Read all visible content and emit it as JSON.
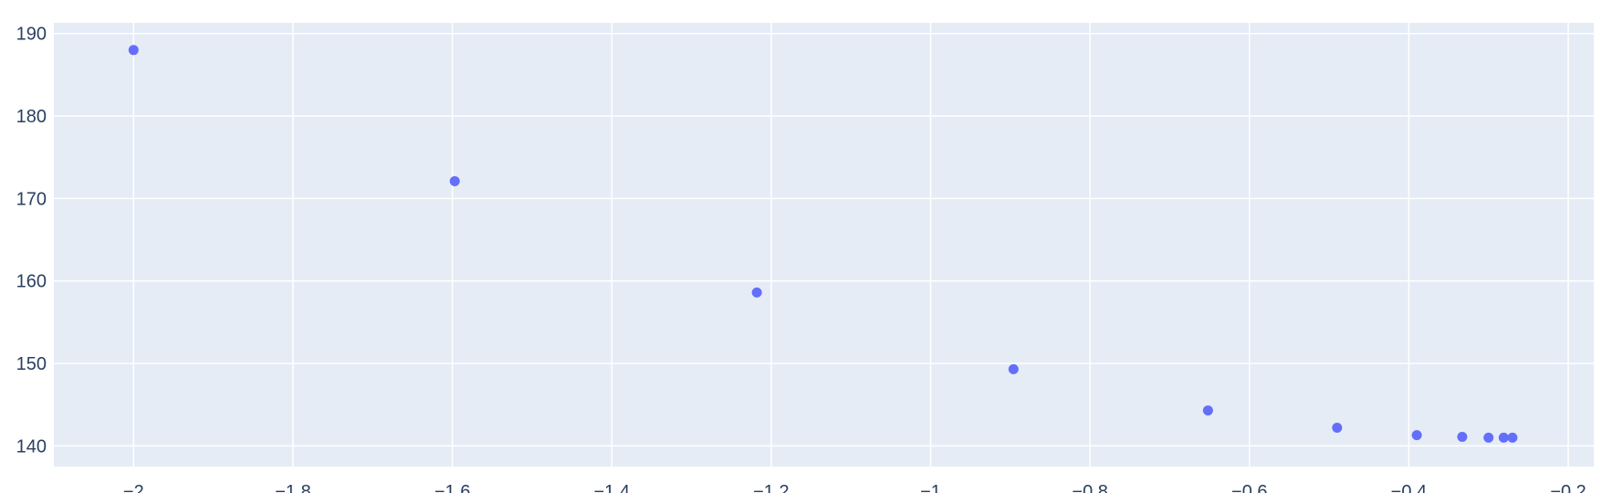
{
  "chart_data": {
    "type": "scatter",
    "title": "",
    "xlabel": "",
    "ylabel": "",
    "xlim": [
      -2.1,
      -0.168
    ],
    "ylim": [
      137.5,
      191.3
    ],
    "xticks": [
      -2,
      -1.8,
      -1.6,
      -1.4,
      -1.2,
      -1,
      -0.8,
      -0.6,
      -0.4,
      -0.2
    ],
    "xtick_labels": [
      "−2",
      "−1.8",
      "−1.6",
      "−1.4",
      "−1.2",
      "−1",
      "−0.8",
      "−0.6",
      "−0.4",
      "−0.2"
    ],
    "yticks": [
      140,
      150,
      160,
      170,
      180,
      190
    ],
    "ytick_labels": [
      "140",
      "150",
      "160",
      "170",
      "180",
      "190"
    ],
    "grid": true,
    "legend": false,
    "colors": {
      "plot_background": "#e5ecf6",
      "grid": "#ffffff",
      "marker": "#636efa",
      "tick_text": "#2a3f5f"
    },
    "series": [
      {
        "x": [
          -2.0,
          -1.597,
          -1.218,
          -0.896,
          -0.652,
          -0.49,
          -0.39,
          -0.333,
          -0.3,
          -0.281,
          -0.27
        ],
        "y": [
          188.0,
          172.1,
          158.6,
          149.3,
          144.3,
          142.2,
          141.3,
          141.1,
          141.0,
          141.0,
          141.0
        ]
      }
    ]
  }
}
